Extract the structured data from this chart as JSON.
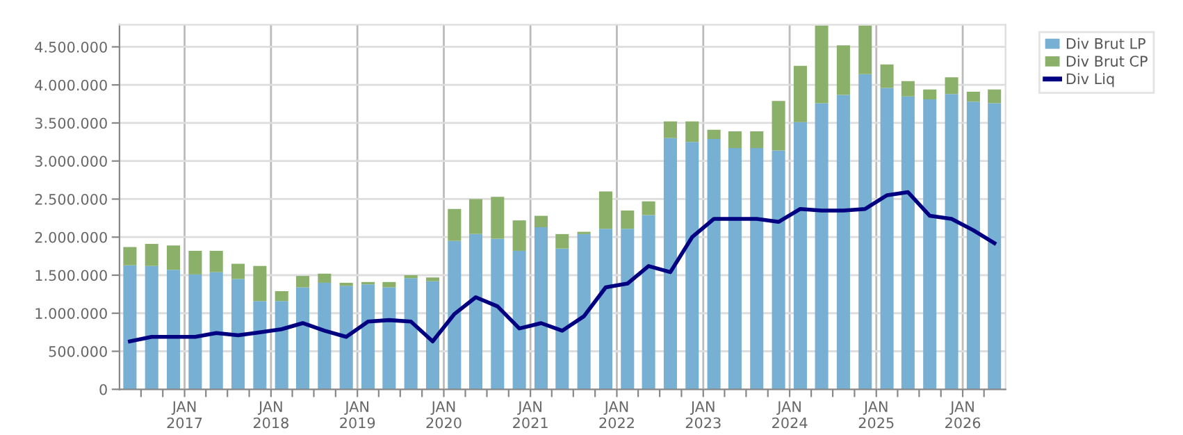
{
  "chart_data": {
    "type": "bar",
    "stacked": true,
    "x": [
      "2016-05-15",
      "2016-08-15",
      "2016-11-15",
      "2017-02-15",
      "2017-05-15",
      "2017-08-15",
      "2017-11-15",
      "2018-02-15",
      "2018-05-15",
      "2018-08-15",
      "2018-11-15",
      "2019-02-15",
      "2019-05-15",
      "2019-08-15",
      "2019-11-15",
      "2020-02-15",
      "2020-05-15",
      "2020-08-15",
      "2020-11-15",
      "2021-02-15",
      "2021-05-15",
      "2021-08-15",
      "2021-11-15",
      "2022-02-15",
      "2022-05-15",
      "2022-08-15",
      "2022-11-15",
      "2023-02-15",
      "2023-05-15",
      "2023-08-15",
      "2023-11-15",
      "2024-02-15",
      "2024-05-15",
      "2024-08-15",
      "2024-11-15",
      "2025-02-15",
      "2025-05-15",
      "2025-08-15",
      "2025-11-15",
      "2026-02-15",
      "2026-05-15"
    ],
    "series": [
      {
        "name": "Div Brut LP",
        "color": "#77b0d3",
        "values": [
          1630000,
          1620000,
          1570000,
          1510000,
          1540000,
          1450000,
          1160000,
          1160000,
          1340000,
          1400000,
          1360000,
          1380000,
          1340000,
          1460000,
          1420000,
          1950000,
          2040000,
          1980000,
          1820000,
          2130000,
          1850000,
          2040000,
          2110000,
          2110000,
          2290000,
          3300000,
          3250000,
          3290000,
          3170000,
          3170000,
          3140000,
          3510000,
          3760000,
          3870000,
          4140000,
          3960000,
          3850000,
          3810000,
          3880000,
          3780000,
          3760000
        ]
      },
      {
        "name": "Div Brut CP",
        "color": "#8ab06a",
        "values": [
          240000,
          290000,
          320000,
          310000,
          280000,
          200000,
          460000,
          130000,
          150000,
          120000,
          40000,
          30000,
          70000,
          40000,
          50000,
          420000,
          460000,
          550000,
          400000,
          150000,
          190000,
          30000,
          490000,
          240000,
          180000,
          220000,
          270000,
          120000,
          220000,
          220000,
          650000,
          740000,
          1020000,
          650000,
          640000,
          310000,
          200000,
          130000,
          220000,
          130000,
          180000
        ]
      },
      {
        "name": "Div Liq",
        "type": "line",
        "color": "#000080",
        "values": [
          630000,
          690000,
          690000,
          690000,
          740000,
          710000,
          750000,
          790000,
          870000,
          770000,
          690000,
          890000,
          910000,
          890000,
          630000,
          990000,
          1210000,
          1090000,
          800000,
          870000,
          770000,
          960000,
          1340000,
          1390000,
          1620000,
          1540000,
          2000000,
          2240000,
          2240000,
          2240000,
          2200000,
          2370000,
          2350000,
          2350000,
          2370000,
          2550000,
          2590000,
          2280000,
          2240000,
          2090000,
          1920000
        ]
      }
    ],
    "xlim": [
      "2016-04-01",
      "2026-07-01"
    ],
    "xticks": [
      {
        "value": "2016-07-01",
        "label": null
      },
      {
        "value": "2016-10-01",
        "label": null
      },
      {
        "value": "2017-01-01",
        "label": "JAN\n2017"
      },
      {
        "value": "2017-04-01",
        "label": null
      },
      {
        "value": "2017-07-01",
        "label": null
      },
      {
        "value": "2017-10-01",
        "label": null
      },
      {
        "value": "2018-01-01",
        "label": "JAN\n2018"
      },
      {
        "value": "2018-04-01",
        "label": null
      },
      {
        "value": "2018-07-01",
        "label": null
      },
      {
        "value": "2018-10-01",
        "label": null
      },
      {
        "value": "2019-01-01",
        "label": "JAN\n2019"
      },
      {
        "value": "2019-04-01",
        "label": null
      },
      {
        "value": "2019-07-01",
        "label": null
      },
      {
        "value": "2019-10-01",
        "label": null
      },
      {
        "value": "2020-01-01",
        "label": "JAN\n2020"
      },
      {
        "value": "2020-04-01",
        "label": null
      },
      {
        "value": "2020-07-01",
        "label": null
      },
      {
        "value": "2020-10-01",
        "label": null
      },
      {
        "value": "2021-01-01",
        "label": "JAN\n2021"
      },
      {
        "value": "2021-04-01",
        "label": null
      },
      {
        "value": "2021-07-01",
        "label": null
      },
      {
        "value": "2021-10-01",
        "label": null
      },
      {
        "value": "2022-01-01",
        "label": "JAN\n2022"
      },
      {
        "value": "2022-04-01",
        "label": null
      },
      {
        "value": "2022-07-01",
        "label": null
      },
      {
        "value": "2022-10-01",
        "label": null
      },
      {
        "value": "2023-01-01",
        "label": "JAN\n2023"
      },
      {
        "value": "2023-04-01",
        "label": null
      },
      {
        "value": "2023-07-01",
        "label": null
      },
      {
        "value": "2023-10-01",
        "label": null
      },
      {
        "value": "2024-01-01",
        "label": "JAN\n2024"
      },
      {
        "value": "2024-04-01",
        "label": null
      },
      {
        "value": "2024-07-01",
        "label": null
      },
      {
        "value": "2024-10-01",
        "label": null
      },
      {
        "value": "2025-01-01",
        "label": "JAN\n2025"
      },
      {
        "value": "2025-04-01",
        "label": null
      },
      {
        "value": "2025-07-01",
        "label": null
      },
      {
        "value": "2025-10-01",
        "label": null
      },
      {
        "value": "2026-01-01",
        "label": "JAN\n2026"
      },
      {
        "value": "2026-04-01",
        "label": null
      }
    ],
    "ylim": [
      0,
      4790000
    ],
    "yticks": [
      0,
      {
        "value": 500000,
        "label": "500.000"
      },
      {
        "value": 1000000,
        "label": "1.000.000"
      },
      {
        "value": 1500000,
        "label": "1.500.000"
      },
      {
        "value": 2000000,
        "label": "2.000.000"
      },
      {
        "value": 2500000,
        "label": "2.500.000"
      },
      {
        "value": 3000000,
        "label": "3.000.000"
      },
      {
        "value": 3500000,
        "label": "3.500.000"
      },
      {
        "value": 4000000,
        "label": "4.000.000"
      },
      {
        "value": 4500000,
        "label": "4.500.000"
      }
    ],
    "grid": true,
    "legend": "top right",
    "marker": "none",
    "line_style": "solid"
  }
}
